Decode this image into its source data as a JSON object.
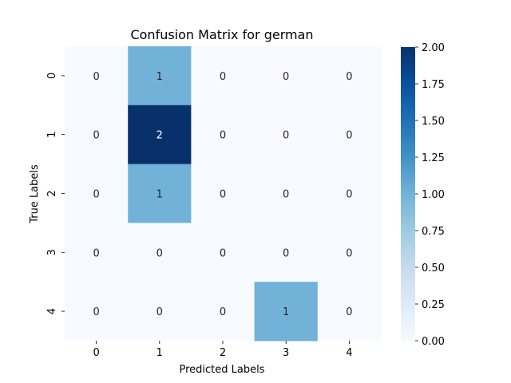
{
  "chart_data": {
    "type": "heatmap",
    "title": "Confusion Matrix for german",
    "xlabel": "Predicted Labels",
    "ylabel": "True Labels",
    "x_categories": [
      "0",
      "1",
      "2",
      "3",
      "4"
    ],
    "y_categories": [
      "0",
      "1",
      "2",
      "3",
      "4"
    ],
    "matrix": [
      [
        0,
        1,
        0,
        0,
        0
      ],
      [
        0,
        2,
        0,
        0,
        0
      ],
      [
        0,
        1,
        0,
        0,
        0
      ],
      [
        0,
        0,
        0,
        0,
        0
      ],
      [
        0,
        0,
        0,
        1,
        0
      ]
    ],
    "colormap": "Blues",
    "colorbar": {
      "range": [
        0.0,
        2.0
      ],
      "ticks": [
        "0.00",
        "0.25",
        "0.50",
        "0.75",
        "1.00",
        "1.25",
        "1.50",
        "1.75",
        "2.00"
      ]
    },
    "colors": {
      "low": "#f7fbff",
      "mid": "#73b2d8",
      "high": "#08306b"
    },
    "grid": false
  }
}
